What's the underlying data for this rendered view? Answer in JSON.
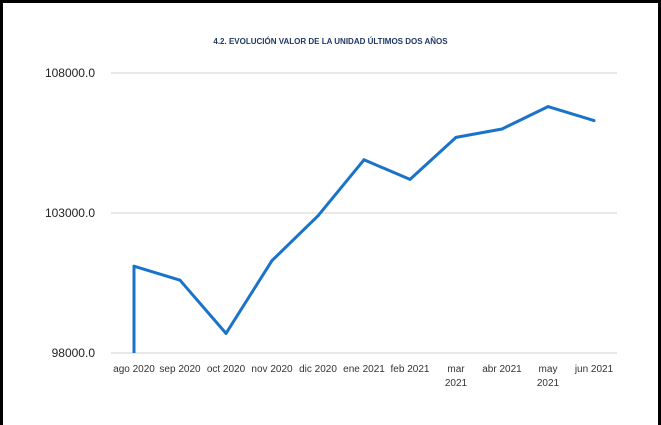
{
  "chart_data": {
    "type": "line",
    "title": "4.2. EVOLUCIÓN VALOR DE LA UNIDAD ÚLTIMOS DOS AÑOS",
    "categories": [
      [
        "ago 2020"
      ],
      [
        "sep 2020"
      ],
      [
        "oct 2020"
      ],
      [
        "nov 2020"
      ],
      [
        "dic 2020"
      ],
      [
        "ene 2021"
      ],
      [
        "feb 2021"
      ],
      [
        "mar",
        "2021"
      ],
      [
        "abr 2021"
      ],
      [
        "may",
        "2021"
      ],
      [
        "jun 2021"
      ]
    ],
    "y_tick_labels": [
      "98000.0",
      "103000.0",
      "108000.0"
    ],
    "y_ticks": [
      98000,
      103000,
      108000
    ],
    "ylim": [
      98000,
      108000
    ],
    "grid": true,
    "color": "#1a73c8",
    "series": [
      {
        "values": [
          101100,
          100600,
          98700,
          101300,
          102900,
          104900,
          104200,
          105700,
          106000,
          106800,
          106300
        ]
      }
    ],
    "first_point_start": 98000
  }
}
